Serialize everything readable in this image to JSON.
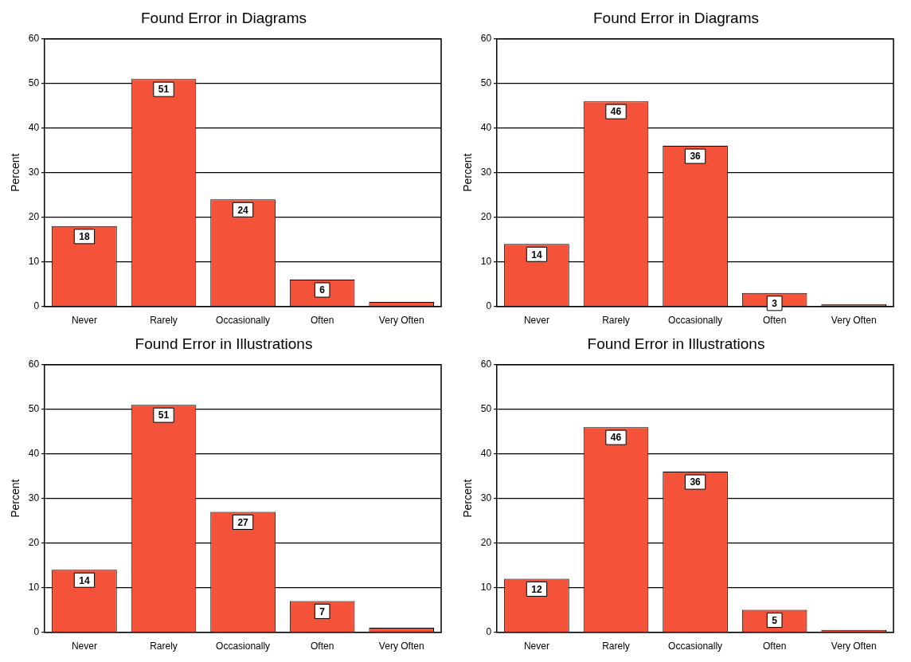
{
  "chart_data": [
    {
      "type": "bar",
      "title": "Found Error in Diagrams",
      "ylabel": "Percent",
      "categories": [
        "Never",
        "Rarely",
        "Occasionally",
        "Often",
        "Very Often"
      ],
      "values": [
        18,
        51,
        24,
        6,
        1
      ],
      "value_labels": [
        "18",
        "51",
        "24",
        "6",
        null
      ],
      "color": "#f4533a",
      "ylim": [
        0,
        60
      ],
      "yticks": [
        0,
        10,
        20,
        30,
        40,
        50,
        60
      ],
      "grid": "y"
    },
    {
      "type": "bar",
      "title": "Found Error in Diagrams",
      "ylabel": "Percent",
      "categories": [
        "Never",
        "Rarely",
        "Occasionally",
        "Often",
        "Very Often"
      ],
      "values": [
        14,
        46,
        36,
        3,
        0.5
      ],
      "value_labels": [
        "14",
        "46",
        "36",
        "3",
        null
      ],
      "color": "#f4533a",
      "ylim": [
        0,
        60
      ],
      "yticks": [
        0,
        10,
        20,
        30,
        40,
        50,
        60
      ],
      "grid": "y"
    },
    {
      "type": "bar",
      "title": "Found Error in Illustrations",
      "ylabel": "Percent",
      "categories": [
        "Never",
        "Rarely",
        "Occasionally",
        "Often",
        "Very Often"
      ],
      "values": [
        14,
        51,
        27,
        7,
        1
      ],
      "value_labels": [
        "14",
        "51",
        "27",
        "7",
        null
      ],
      "color": "#f4533a",
      "ylim": [
        0,
        60
      ],
      "yticks": [
        0,
        10,
        20,
        30,
        40,
        50,
        60
      ],
      "grid": "y"
    },
    {
      "type": "bar",
      "title": "Found Error in Illustrations",
      "ylabel": "Percent",
      "categories": [
        "Never",
        "Rarely",
        "Occasionally",
        "Often",
        "Very Often"
      ],
      "values": [
        12,
        46,
        36,
        5,
        0.5
      ],
      "value_labels": [
        "12",
        "46",
        "36",
        "5",
        null
      ],
      "color": "#f4533a",
      "ylim": [
        0,
        60
      ],
      "yticks": [
        0,
        10,
        20,
        30,
        40,
        50,
        60
      ],
      "grid": "y"
    }
  ]
}
